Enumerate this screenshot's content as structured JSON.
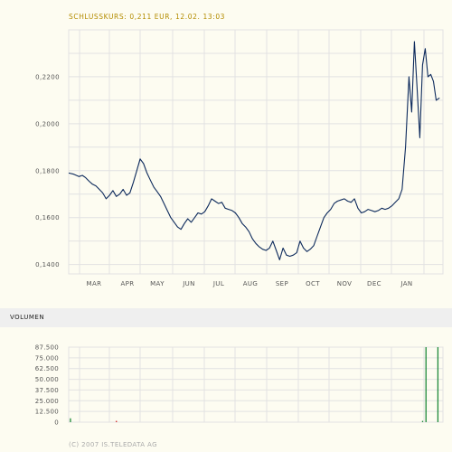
{
  "header": {
    "title": "SCHLUSSKURS: 0,211 EUR, 12.02. 13:03"
  },
  "volume_section": {
    "label": "VOLUMEN"
  },
  "footer": {
    "copyright": "(C) 2007 IS.TELEDATA AG"
  },
  "colors": {
    "price_line": "#0d2a5c",
    "grid": "#e2e2e2",
    "header": "#b48c00",
    "volume_bar": "#1e8a3a",
    "volume_bar_red": "#cc2222"
  },
  "chart_data": [
    {
      "type": "line",
      "title": "SCHLUSSKURS: 0,211 EUR, 12.02. 13:03",
      "series": [
        {
          "name": "",
          "points": [
            [
              0,
              0.179
            ],
            [
              1.5,
              0.1785
            ],
            [
              3,
              0.1775
            ],
            [
              4,
              0.178
            ],
            [
              5,
              0.177
            ],
            [
              6,
              0.1755
            ],
            [
              7,
              0.1742
            ],
            [
              8,
              0.1735
            ],
            [
              9,
              0.172
            ],
            [
              10,
              0.1705
            ],
            [
              11,
              0.168
            ],
            [
              12,
              0.1695
            ],
            [
              13,
              0.1715
            ],
            [
              14,
              0.169
            ],
            [
              15,
              0.17
            ],
            [
              16,
              0.172
            ],
            [
              17,
              0.1695
            ],
            [
              18,
              0.1705
            ],
            [
              19,
              0.175
            ],
            [
              20,
              0.18
            ],
            [
              21,
              0.185
            ],
            [
              22,
              0.183
            ],
            [
              23,
              0.179
            ],
            [
              24,
              0.176
            ],
            [
              25,
              0.173
            ],
            [
              26,
              0.171
            ],
            [
              27,
              0.169
            ],
            [
              28,
              0.166
            ],
            [
              29,
              0.163
            ],
            [
              30,
              0.16
            ],
            [
              31,
              0.158
            ],
            [
              32,
              0.156
            ],
            [
              33,
              0.155
            ],
            [
              34,
              0.1575
            ],
            [
              35,
              0.1595
            ],
            [
              36,
              0.158
            ],
            [
              37,
              0.16
            ],
            [
              38,
              0.162
            ],
            [
              39,
              0.1615
            ],
            [
              40,
              0.1625
            ],
            [
              41,
              0.165
            ],
            [
              42,
              0.168
            ],
            [
              43,
              0.167
            ],
            [
              44,
              0.166
            ],
            [
              45,
              0.1665
            ],
            [
              46,
              0.164
            ],
            [
              47,
              0.1635
            ],
            [
              48,
              0.163
            ],
            [
              49,
              0.162
            ],
            [
              50,
              0.16
            ],
            [
              51,
              0.1575
            ],
            [
              52,
              0.156
            ],
            [
              53,
              0.154
            ],
            [
              54,
              0.151
            ],
            [
              55,
              0.149
            ],
            [
              56,
              0.1475
            ],
            [
              57,
              0.1465
            ],
            [
              58,
              0.146
            ],
            [
              59,
              0.147
            ],
            [
              60,
              0.15
            ],
            [
              61,
              0.146
            ],
            [
              62,
              0.142
            ],
            [
              63,
              0.147
            ],
            [
              64,
              0.144
            ],
            [
              65,
              0.1435
            ],
            [
              66,
              0.144
            ],
            [
              67,
              0.145
            ],
            [
              68,
              0.15
            ],
            [
              69,
              0.147
            ],
            [
              70,
              0.1455
            ],
            [
              71,
              0.1465
            ],
            [
              72,
              0.148
            ],
            [
              73,
              0.152
            ],
            [
              74,
              0.156
            ],
            [
              75,
              0.16
            ],
            [
              76,
              0.162
            ],
            [
              77,
              0.1635
            ],
            [
              78,
              0.166
            ],
            [
              79,
              0.167
            ],
            [
              80,
              0.1675
            ],
            [
              81,
              0.168
            ],
            [
              82,
              0.167
            ],
            [
              83,
              0.1665
            ],
            [
              84,
              0.168
            ],
            [
              85,
              0.164
            ],
            [
              86,
              0.162
            ],
            [
              87,
              0.1625
            ],
            [
              88,
              0.1635
            ],
            [
              89,
              0.163
            ],
            [
              90,
              0.1625
            ],
            [
              91,
              0.163
            ],
            [
              92,
              0.164
            ],
            [
              93,
              0.1635
            ],
            [
              94,
              0.164
            ],
            [
              95,
              0.165
            ],
            [
              96,
              0.1665
            ],
            [
              97,
              0.168
            ],
            [
              98,
              0.172
            ],
            [
              99,
              0.19
            ],
            [
              100,
              0.22
            ],
            [
              100.8,
              0.205
            ],
            [
              101.6,
              0.235
            ],
            [
              102.4,
              0.215
            ],
            [
              103.2,
              0.194
            ],
            [
              104,
              0.225
            ],
            [
              104.8,
              0.232
            ],
            [
              105.6,
              0.22
            ],
            [
              106.4,
              0.221
            ],
            [
              107.2,
              0.218
            ],
            [
              108,
              0.21
            ],
            [
              109,
              0.211
            ]
          ]
        }
      ],
      "x_labels": [
        "MAR",
        "APR",
        "MAY",
        "JUN",
        "JUL",
        "AUG",
        "SEP",
        "OCT",
        "NOV",
        "DEC",
        "JAN"
      ],
      "y_ticks": [
        "0,1400",
        "0,1600",
        "0,1800",
        "0,2000",
        "0,2200"
      ],
      "y_values": [
        0.14,
        0.16,
        0.18,
        0.2,
        0.22
      ],
      "ylim": [
        0.136,
        0.24
      ],
      "grid": true
    },
    {
      "type": "bar",
      "title": "VOLUMEN",
      "y_ticks": [
        "0",
        "12.500",
        "25.000",
        "37.500",
        "50.000",
        "62.500",
        "75.000",
        "87.500"
      ],
      "ylim": [
        0,
        87500
      ],
      "bars": [
        {
          "x": 0.5,
          "value": 4500,
          "color": "green"
        },
        {
          "x": 14,
          "value": 1500,
          "color": "red"
        },
        {
          "x": 104,
          "value": 1500,
          "color": "green"
        },
        {
          "x": 105,
          "value": 87500,
          "color": "green"
        },
        {
          "x": 108.5,
          "value": 87500,
          "color": "green"
        }
      ],
      "grid": true
    }
  ]
}
